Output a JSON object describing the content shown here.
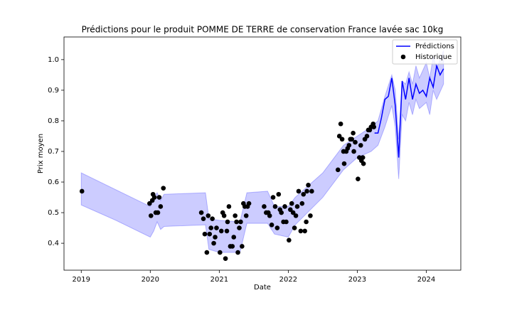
{
  "chart_data": {
    "type": "line",
    "title": "Prédictions pour le produit POMME DE TERRE de conservation France lavée sac 10kg",
    "x_label": "Date",
    "y_label": "Prix moyen",
    "xlim": [
      2018.75,
      2024.5
    ],
    "xticks": [
      2019,
      2020,
      2021,
      2022,
      2023,
      2024
    ],
    "ylim": [
      0.312,
      1.074
    ],
    "yticks": [
      0.4,
      0.5,
      0.6,
      0.7,
      0.8,
      0.9,
      {
        "value": 1,
        "label": "1.0"
      }
    ],
    "legend": "upper right",
    "interval": {
      "color": "#0000ff",
      "x": [
        2019.0,
        2019.5,
        2020.0,
        2020.05,
        2020.1,
        2020.15,
        2020.2,
        2020.8,
        2020.85,
        2021.0,
        2021.3,
        2021.4,
        2021.7,
        2021.8,
        2022.0,
        2022.1,
        2022.5,
        2022.8,
        2023.0,
        2023.2,
        2023.3,
        2023.4,
        2023.5,
        2023.55,
        2023.6,
        2023.65,
        2023.7,
        2023.75,
        2023.8,
        2023.85,
        2023.9,
        2024.0,
        2024.05,
        2024.1,
        2024.15,
        2024.25
      ],
      "upper": [
        0.63,
        0.575,
        0.52,
        0.55,
        0.565,
        0.54,
        0.56,
        0.565,
        0.48,
        0.475,
        0.47,
        0.565,
        0.57,
        0.52,
        0.52,
        0.55,
        0.63,
        0.72,
        0.75,
        0.78,
        0.8,
        0.88,
        0.95,
        0.9,
        0.74,
        0.93,
        0.92,
        0.96,
        0.92,
        0.98,
        0.94,
        0.99,
        0.94,
        1.01,
        0.97,
        1.03
      ],
      "lower": [
        0.525,
        0.475,
        0.42,
        0.44,
        0.47,
        0.445,
        0.455,
        0.46,
        0.38,
        0.37,
        0.37,
        0.465,
        0.465,
        0.43,
        0.42,
        0.46,
        0.55,
        0.64,
        0.68,
        0.7,
        0.72,
        0.78,
        0.85,
        0.78,
        0.61,
        0.82,
        0.8,
        0.86,
        0.82,
        0.87,
        0.84,
        0.86,
        0.82,
        0.9,
        0.87,
        0.92
      ]
    },
    "series": [
      {
        "name": "Prédictions",
        "type": "line",
        "color": "#0000ff",
        "x": [
          2023.25,
          2023.3,
          2023.35,
          2023.4,
          2023.45,
          2023.5,
          2023.55,
          2023.6,
          2023.65,
          2023.7,
          2023.75,
          2023.8,
          2023.85,
          2023.9,
          2023.95,
          2024.0,
          2024.05,
          2024.1,
          2024.15,
          2024.2,
          2024.25
        ],
        "values": [
          0.76,
          0.76,
          0.81,
          0.87,
          0.88,
          0.94,
          0.85,
          0.68,
          0.93,
          0.87,
          0.94,
          0.87,
          0.92,
          0.89,
          0.9,
          0.88,
          0.94,
          0.91,
          0.98,
          0.95,
          0.97
        ]
      },
      {
        "name": "Historique",
        "type": "scatter",
        "color": "#000000",
        "x": [
          2019.01,
          2019.99,
          2020.01,
          2020.03,
          2020.04,
          2020.06,
          2020.08,
          2020.11,
          2020.13,
          2020.15,
          2020.19,
          2020.74,
          2020.77,
          2020.79,
          2020.82,
          2020.84,
          2020.86,
          2020.88,
          2020.9,
          2020.92,
          2020.94,
          2020.96,
          2021.01,
          2021.03,
          2021.05,
          2021.07,
          2021.09,
          2021.11,
          2021.12,
          2021.14,
          2021.16,
          2021.19,
          2021.21,
          2021.23,
          2021.25,
          2021.27,
          2021.29,
          2021.31,
          2021.33,
          2021.35,
          2021.37,
          2021.39,
          2021.41,
          2021.43,
          2021.65,
          2021.68,
          2021.71,
          2021.73,
          2021.76,
          2021.78,
          2021.81,
          2021.84,
          2021.86,
          2021.88,
          2021.9,
          2021.93,
          2021.95,
          2021.97,
          2022.01,
          2022.03,
          2022.05,
          2022.07,
          2022.09,
          2022.11,
          2022.13,
          2022.15,
          2022.18,
          2022.2,
          2022.22,
          2022.24,
          2022.26,
          2022.27,
          2022.29,
          2022.32,
          2022.34,
          2022.72,
          2022.74,
          2022.76,
          2022.78,
          2022.8,
          2022.81,
          2022.84,
          2022.86,
          2022.88,
          2022.9,
          2022.92,
          2022.94,
          2022.95,
          2022.97,
          2023.01,
          2023.03,
          2023.05,
          2023.06,
          2023.08,
          2023.09,
          2023.11,
          2023.14,
          2023.16,
          2023.18,
          2023.2,
          2023.23,
          2023.24
        ],
        "values": [
          0.57,
          0.53,
          0.49,
          0.54,
          0.56,
          0.55,
          0.5,
          0.5,
          0.55,
          0.52,
          0.58,
          0.5,
          0.48,
          0.43,
          0.37,
          0.49,
          0.43,
          0.45,
          0.48,
          0.4,
          0.42,
          0.45,
          0.37,
          0.44,
          0.5,
          0.49,
          0.35,
          0.44,
          0.47,
          0.52,
          0.39,
          0.39,
          0.42,
          0.49,
          0.47,
          0.37,
          0.45,
          0.47,
          0.39,
          0.53,
          0.52,
          0.49,
          0.52,
          0.53,
          0.52,
          0.5,
          0.5,
          0.49,
          0.46,
          0.55,
          0.52,
          0.45,
          0.56,
          0.51,
          0.5,
          0.47,
          0.52,
          0.47,
          0.41,
          0.51,
          0.53,
          0.5,
          0.45,
          0.49,
          0.52,
          0.57,
          0.44,
          0.53,
          0.56,
          0.44,
          0.47,
          0.57,
          0.59,
          0.49,
          0.57,
          0.64,
          0.75,
          0.79,
          0.74,
          0.7,
          0.66,
          0.7,
          0.71,
          0.72,
          0.74,
          0.74,
          0.76,
          0.7,
          0.73,
          0.61,
          0.68,
          0.72,
          0.67,
          0.68,
          0.66,
          0.74,
          0.75,
          0.77,
          0.77,
          0.78,
          0.79,
          0.78
        ]
      }
    ]
  }
}
